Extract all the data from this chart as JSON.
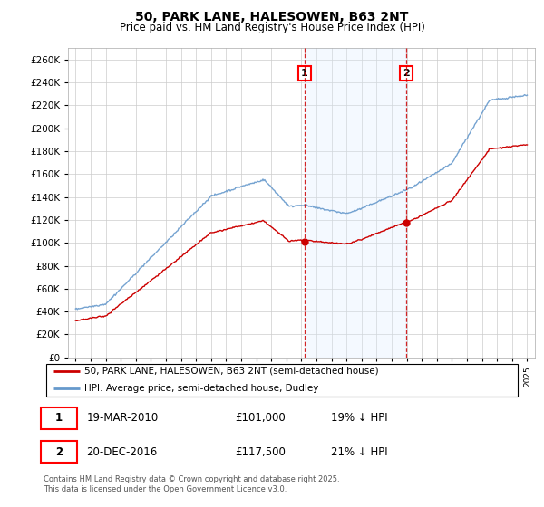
{
  "title": "50, PARK LANE, HALESOWEN, B63 2NT",
  "subtitle": "Price paid vs. HM Land Registry's House Price Index (HPI)",
  "legend_line1": "50, PARK LANE, HALESOWEN, B63 2NT (semi-detached house)",
  "legend_line2": "HPI: Average price, semi-detached house, Dudley",
  "annotation1_date": "19-MAR-2010",
  "annotation1_price": "£101,000",
  "annotation1_hpi": "19% ↓ HPI",
  "annotation2_date": "20-DEC-2016",
  "annotation2_price": "£117,500",
  "annotation2_hpi": "21% ↓ HPI",
  "footnote": "Contains HM Land Registry data © Crown copyright and database right 2025.\nThis data is licensed under the Open Government Licence v3.0.",
  "line1_color": "#cc0000",
  "line2_color": "#6699cc",
  "vline1_x": 2010.22,
  "vline2_x": 2016.97,
  "shade_color": "#ddeeff",
  "ylim_min": 0,
  "ylim_max": 270000,
  "ytick_step": 20000,
  "xlim_min": 1994.5,
  "xlim_max": 2025.5,
  "bg_color": "#ffffff",
  "grid_color": "#cccccc"
}
